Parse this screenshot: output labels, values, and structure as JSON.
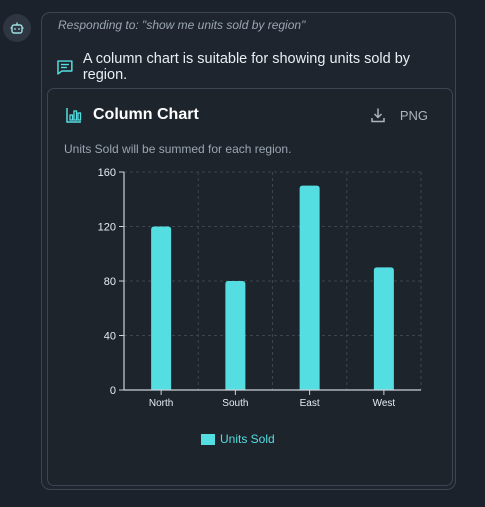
{
  "message": {
    "context": "Responding to: \"show me units sold by region\"",
    "answer": "A column chart is suitable for showing units sold by region."
  },
  "card": {
    "title": "Column Chart",
    "download_label": "PNG",
    "subtitle": "Units Sold will be summed for each region."
  },
  "colors": {
    "accent": "#54dee2",
    "background": "#1b222b",
    "border": "#3b4652"
  },
  "icons": {
    "avatar": "bot-icon",
    "message": "message-icon",
    "chart": "bar-chart-icon",
    "download": "download-icon"
  },
  "chart_data": {
    "type": "bar",
    "categories": [
      "North",
      "South",
      "East",
      "West"
    ],
    "series": [
      {
        "name": "Units Sold",
        "values": [
          120,
          80,
          150,
          90
        ]
      }
    ],
    "ylim": [
      0,
      160
    ],
    "yticks": [
      0,
      40,
      80,
      120,
      160
    ],
    "grid": true,
    "legend_position": "bottom"
  }
}
